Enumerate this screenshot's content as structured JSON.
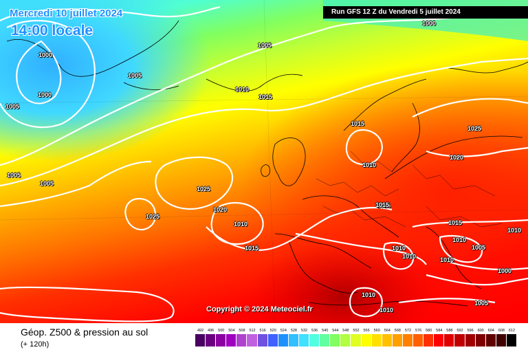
{
  "header": {
    "date_text": "Mercredi 10 juillet 2024",
    "time_text": "14:00 locale",
    "run_text": "Run GFS 12 Z du Vendredi 5 juillet 2024"
  },
  "copyright": "Copyright © 2024 Meteociel.fr",
  "footer": {
    "title": "Géop. Z500 & pression au sol",
    "subtitle": "(+ 120h)"
  },
  "pressure_labels": [
    "1000",
    "1005",
    "1005",
    "1000",
    "1000",
    "1005",
    "1005",
    "1005",
    "1010",
    "1015",
    "1025",
    "1025",
    "1020",
    "1010",
    "1015",
    "1025",
    "1015",
    "1010",
    "1025",
    "1020",
    "1015",
    "1015",
    "1010",
    "1010",
    "1010",
    "1010",
    "1010",
    "1000",
    "1005",
    "1010",
    "1010",
    "1005"
  ],
  "scale": {
    "values": [
      "492",
      "496",
      "500",
      "504",
      "508",
      "512",
      "516",
      "520",
      "524",
      "528",
      "532",
      "536",
      "540",
      "544",
      "548",
      "552",
      "556",
      "560",
      "564",
      "568",
      "572",
      "576",
      "580",
      "584",
      "588",
      "592",
      "596",
      "600",
      "604",
      "608",
      "612"
    ],
    "colors": [
      "#4a0060",
      "#6a0080",
      "#8a00a0",
      "#a000c0",
      "#b040d0",
      "#c060e0",
      "#7050e0",
      "#4060ff",
      "#2090ff",
      "#30c0ff",
      "#40e0ff",
      "#50ffe0",
      "#60ffa0",
      "#80ff60",
      "#b0ff40",
      "#e0ff20",
      "#ffff00",
      "#ffe000",
      "#ffc000",
      "#ffa000",
      "#ff8000",
      "#ff6000",
      "#ff3000",
      "#ff0000",
      "#e00000",
      "#c00000",
      "#a00000",
      "#800000",
      "#600000",
      "#400000",
      "#000000"
    ]
  }
}
